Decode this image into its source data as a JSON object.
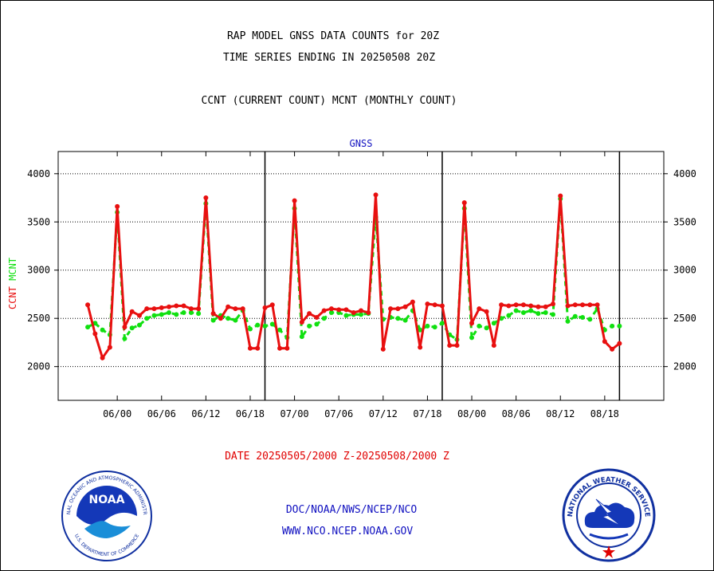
{
  "header": {
    "title_line1": "RAP MODEL GNSS DATA COUNTS for 20Z",
    "title_line2": "TIME SERIES ENDING IN 20250508 20Z",
    "title_line3": "CCNT (CURRENT COUNT) MCNT (MONTHLY COUNT)"
  },
  "footer": {
    "date_range": "DATE 20250505/2000 Z-20250508/2000 Z",
    "credit_line1": "DOC/NOAA/NWS/NCEP/NCO",
    "credit_line2": "WWW.NCO.NCEP.NOAA.GOV"
  },
  "logos": {
    "noaa": {
      "label": "NOAA",
      "ring_text": "NATIONAL OCEANIC AND ATMOSPHERIC ADMINISTRATION",
      "ring_text_bottom": "U.S. DEPARTMENT OF COMMERCE"
    },
    "nws": {
      "ring_text": "NATIONAL WEATHER SERVICE"
    }
  },
  "colors": {
    "ccnt": "#e81010",
    "mcnt": "#10e010",
    "grid": "#000000",
    "panel_title": "#1010c0"
  },
  "chart_data": {
    "type": "line",
    "title": "GNSS",
    "ylabel_series": [
      "CCNT",
      "MCNT"
    ],
    "ylim": [
      1650,
      4230
    ],
    "yticks": [
      2000,
      2500,
      3000,
      3500,
      4000
    ],
    "grid": true,
    "x_range_hours": [
      -4,
      78
    ],
    "xticks": [
      {
        "hour": 4,
        "label": "06/00"
      },
      {
        "hour": 10,
        "label": "06/06"
      },
      {
        "hour": 16,
        "label": "06/12"
      },
      {
        "hour": 22,
        "label": "06/18"
      },
      {
        "hour": 28,
        "label": "07/00"
      },
      {
        "hour": 34,
        "label": "07/06"
      },
      {
        "hour": 40,
        "label": "07/12"
      },
      {
        "hour": 46,
        "label": "07/18"
      },
      {
        "hour": 52,
        "label": "08/00"
      },
      {
        "hour": 58,
        "label": "08/06"
      },
      {
        "hour": 64,
        "label": "08/12"
      },
      {
        "hour": 70,
        "label": "08/18"
      }
    ],
    "day_boundaries_hours": [
      24,
      48,
      72
    ],
    "x_hours": [
      0,
      1,
      2,
      3,
      4,
      5,
      6,
      7,
      8,
      9,
      10,
      11,
      12,
      13,
      14,
      15,
      16,
      17,
      18,
      19,
      20,
      21,
      22,
      23,
      24,
      25,
      26,
      27,
      28,
      29,
      30,
      31,
      32,
      33,
      34,
      35,
      36,
      37,
      38,
      39,
      40,
      41,
      42,
      43,
      44,
      45,
      46,
      47,
      48,
      49,
      50,
      51,
      52,
      53,
      54,
      55,
      56,
      57,
      58,
      59,
      60,
      61,
      62,
      63,
      64,
      65,
      66,
      67,
      68,
      69,
      70,
      71,
      72
    ],
    "series": [
      {
        "name": "CCNT",
        "values": [
          2640,
          2340,
          2090,
          2200,
          3660,
          2410,
          2570,
          2530,
          2600,
          2600,
          2610,
          2620,
          2630,
          2630,
          2600,
          2600,
          3750,
          2550,
          2500,
          2620,
          2600,
          2600,
          2190,
          2190,
          2610,
          2640,
          2190,
          2190,
          3720,
          2460,
          2550,
          2510,
          2580,
          2600,
          2590,
          2590,
          2560,
          2580,
          2560,
          3780,
          2180,
          2600,
          2600,
          2620,
          2670,
          2200,
          2650,
          2640,
          2630,
          2220,
          2220,
          3700,
          2450,
          2600,
          2570,
          2220,
          2640,
          2630,
          2640,
          2640,
          2630,
          2620,
          2620,
          2650,
          3770,
          2630,
          2640,
          2640,
          2640,
          2640,
          2260,
          2180,
          2240
        ]
      },
      {
        "name": "MCNT",
        "values": [
          2410,
          2450,
          2380,
          2330,
          3600,
          2290,
          2400,
          2430,
          2500,
          2530,
          2540,
          2560,
          2540,
          2560,
          2560,
          2550,
          3690,
          2480,
          2530,
          2500,
          2480,
          2580,
          2390,
          2430,
          2420,
          2440,
          2380,
          2300,
          3640,
          2310,
          2420,
          2440,
          2500,
          2560,
          2560,
          2530,
          2540,
          2540,
          2550,
          3550,
          2490,
          2510,
          2500,
          2480,
          2580,
          2380,
          2420,
          2410,
          2450,
          2330,
          2280,
          3640,
          2300,
          2420,
          2400,
          2450,
          2500,
          2530,
          2580,
          2560,
          2580,
          2550,
          2560,
          2540,
          3740,
          2470,
          2520,
          2510,
          2490,
          2600,
          2380,
          2420,
          2420
        ]
      }
    ]
  }
}
